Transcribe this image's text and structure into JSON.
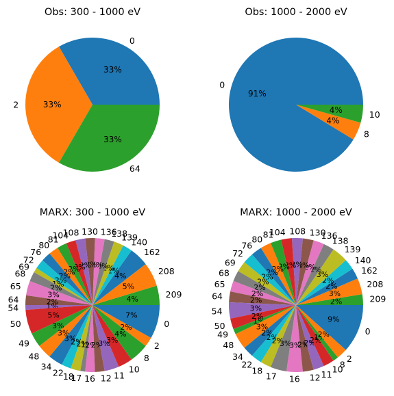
{
  "palette": [
    "#1f77b4",
    "#ff7f0e",
    "#2ca02c",
    "#d62728",
    "#9467bd",
    "#8c564b",
    "#e377c2",
    "#7f7f7f",
    "#bcbd22",
    "#17becf"
  ],
  "chart_data": [
    {
      "type": "pie",
      "title": "Obs: 300 - 1000 eV",
      "start_angle_deg": 0,
      "labels": [
        "0",
        "2",
        "64"
      ],
      "values": [
        1,
        1,
        1
      ],
      "pct_labels": [
        "33%",
        "33%",
        "33%"
      ],
      "slice_colors": [
        "#1f77b4",
        "#ff7f0e",
        "#2ca02c"
      ]
    },
    {
      "type": "pie",
      "title": "Obs: 1000 - 2000 eV",
      "start_angle_deg": 0,
      "labels": [
        "0",
        "8",
        "10"
      ],
      "values": [
        91.3,
        4.35,
        4.35
      ],
      "pct_labels": [
        "91%",
        "4%",
        "4%"
      ],
      "slice_colors": [
        "#1f77b4",
        "#ff7f0e",
        "#2ca02c"
      ]
    },
    {
      "type": "pie",
      "title": "MARX: 300 - 1000 eV",
      "start_angle_deg": 0,
      "labels": [
        "209",
        "208",
        "162",
        "140",
        "139",
        "138",
        "136",
        "130",
        "108",
        "104",
        "81",
        "80",
        "76",
        "72",
        "69",
        "68",
        "65",
        "64",
        "54",
        "50",
        "49",
        "48",
        "34",
        "22",
        "18",
        "17",
        "16",
        "12",
        "11",
        "10",
        "8",
        "2",
        "0"
      ],
      "values": [
        4,
        5,
        4,
        2,
        2,
        2,
        2,
        2,
        2,
        2,
        2,
        2,
        2,
        2,
        1,
        2,
        3,
        2,
        1,
        5,
        3,
        3,
        3,
        2,
        2,
        1,
        2,
        2,
        3,
        3,
        4,
        2,
        7
      ],
      "pct_labels": [
        "4%",
        "5%",
        "4%",
        "2%",
        "2%",
        "2%",
        "2%",
        "2%",
        "2%",
        "2%",
        "2%",
        "2%",
        "2%",
        "2%",
        "1%",
        "2%",
        "3%",
        "2%",
        "1%",
        "5%",
        "3%",
        "3%",
        "3%",
        "2%",
        "2%",
        "1%",
        "2%",
        "2%",
        "3%",
        "3%",
        "4%",
        "2%",
        "7%"
      ],
      "slice_colors": [
        "#2ca02c",
        "#ff7f0e",
        "#1f77b4",
        "#17becf",
        "#bcbd22",
        "#7f7f7f",
        "#e377c2",
        "#8c564b",
        "#9467bd",
        "#d62728",
        "#2ca02c",
        "#ff7f0e",
        "#1f77b4",
        "#17becf",
        "#bcbd22",
        "#7f7f7f",
        "#e377c2",
        "#8c564b",
        "#9467bd",
        "#d62728",
        "#2ca02c",
        "#ff7f0e",
        "#1f77b4",
        "#17becf",
        "#bcbd22",
        "#7f7f7f",
        "#e377c2",
        "#8c564b",
        "#9467bd",
        "#d62728",
        "#2ca02c",
        "#ff7f0e",
        "#1f77b4"
      ]
    },
    {
      "type": "pie",
      "title": "MARX: 1000 - 2000 eV",
      "start_angle_deg": 0,
      "labels": [
        "209",
        "208",
        "162",
        "140",
        "139",
        "138",
        "136",
        "130",
        "108",
        "104",
        "81",
        "80",
        "76",
        "72",
        "69",
        "68",
        "65",
        "64",
        "54",
        "50",
        "49",
        "48",
        "34",
        "22",
        "18",
        "17",
        "16",
        "12",
        "11",
        "10",
        "8",
        "2",
        "0"
      ],
      "values": [
        2,
        3,
        2,
        2,
        3,
        2,
        2,
        2,
        2,
        2,
        2,
        2,
        2,
        2,
        2,
        2,
        2,
        2,
        3,
        2,
        1,
        3,
        2,
        2,
        2,
        3,
        3,
        2,
        2,
        2,
        1,
        2,
        9
      ],
      "pct_labels": [
        "2%",
        "3%",
        "2%",
        "2%",
        "3%",
        "2%",
        "2%",
        "2%",
        "2%",
        "2%",
        "2%",
        "2%",
        "2%",
        "2%",
        "2%",
        "2%",
        "2%",
        "2%",
        "3%",
        "2%",
        "1%",
        "3%",
        "2%",
        "2%",
        "2%",
        "3%",
        "3%",
        "2%",
        "2%",
        "2%",
        "1%",
        "2%",
        "9%"
      ],
      "slice_colors": [
        "#2ca02c",
        "#ff7f0e",
        "#1f77b4",
        "#17becf",
        "#bcbd22",
        "#7f7f7f",
        "#e377c2",
        "#8c564b",
        "#9467bd",
        "#d62728",
        "#2ca02c",
        "#ff7f0e",
        "#1f77b4",
        "#17becf",
        "#bcbd22",
        "#7f7f7f",
        "#e377c2",
        "#8c564b",
        "#9467bd",
        "#d62728",
        "#2ca02c",
        "#ff7f0e",
        "#1f77b4",
        "#17becf",
        "#bcbd22",
        "#7f7f7f",
        "#e377c2",
        "#8c564b",
        "#9467bd",
        "#d62728",
        "#2ca02c",
        "#ff7f0e",
        "#1f77b4"
      ]
    }
  ]
}
